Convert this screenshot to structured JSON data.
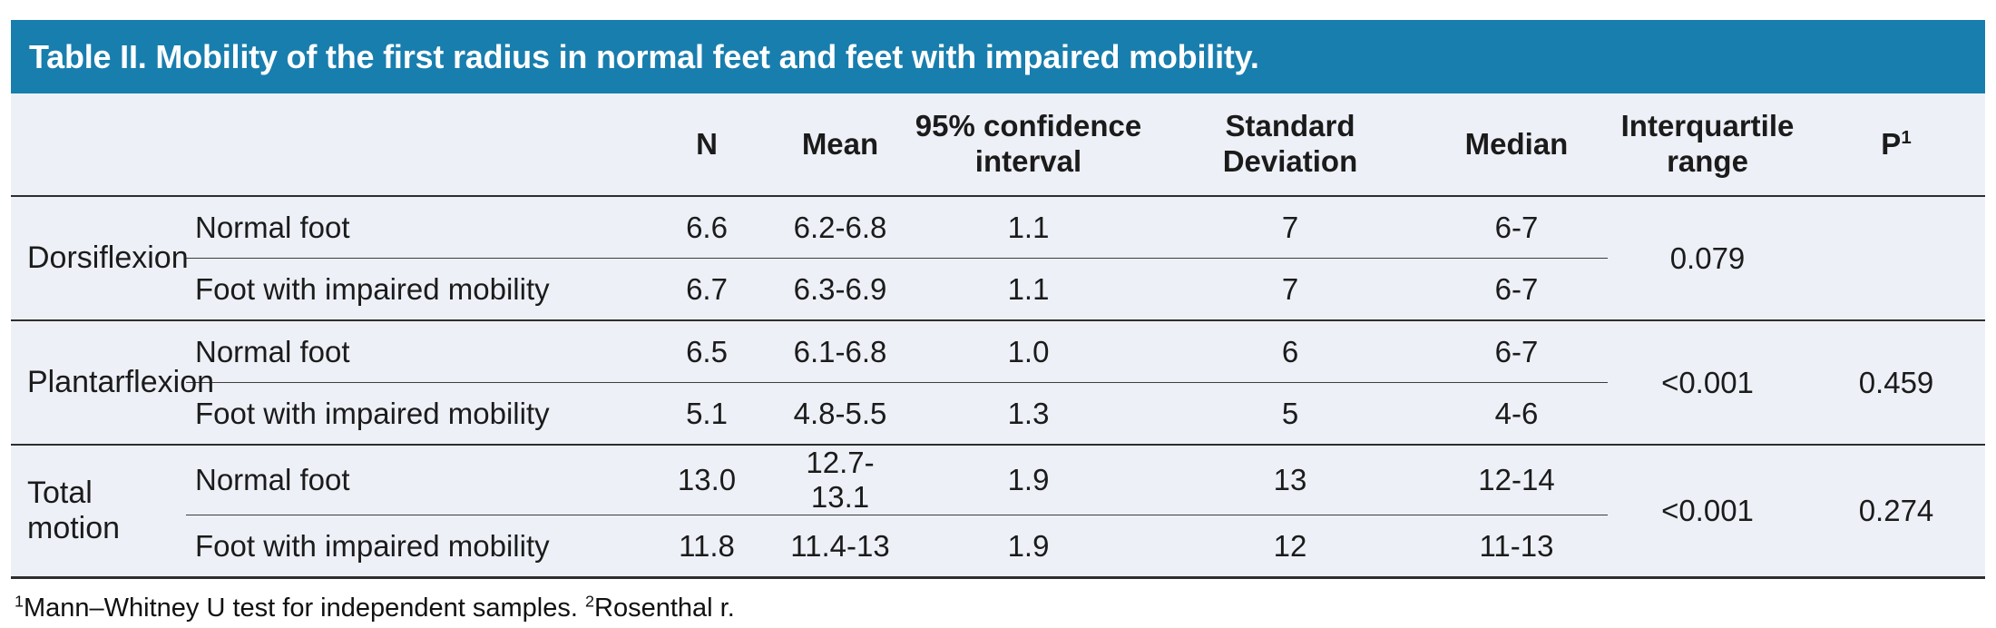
{
  "colors": {
    "accent": "#187eae",
    "table_bg": "#edf0f7"
  },
  "title": "Table II. Mobility of the first radius in normal feet and feet with impaired mobility.",
  "table": {
    "headers": {
      "n": "N",
      "mean": "Mean",
      "ci": "95% confidence interval",
      "sd": "Standard Deviation",
      "median": "Median",
      "iqr": "Interquartile range",
      "p": "P",
      "p_sup": "1"
    },
    "groups": [
      {
        "label": "Dorsiflexion",
        "rows": [
          {
            "label": "Normal foot",
            "n": "6.6",
            "mean": "6.2-6.8",
            "ci": "1.1",
            "sd": "7",
            "median": "6-7"
          },
          {
            "label": "Foot with impaired mobility",
            "n": "6.7",
            "mean": "6.3-6.9",
            "ci": "1.1",
            "sd": "7",
            "median": "6-7"
          }
        ],
        "iqr": "0.079",
        "p": ""
      },
      {
        "label": "Plantarflexion",
        "rows": [
          {
            "label": "Normal foot",
            "n": "6.5",
            "mean": "6.1-6.8",
            "ci": "1.0",
            "sd": "6",
            "median": "6-7"
          },
          {
            "label": "Foot with impaired mobility",
            "n": "5.1",
            "mean": "4.8-5.5",
            "ci": "1.3",
            "sd": "5",
            "median": "4-6"
          }
        ],
        "iqr": "<0.001",
        "p": "0.459"
      },
      {
        "label": "Total motion",
        "rows": [
          {
            "label": "Normal foot",
            "n": "13.0",
            "mean": "12.7-13.1",
            "ci": "1.9",
            "sd": "13",
            "median": "12-14"
          },
          {
            "label": "Foot with impaired mobility",
            "n": "11.8",
            "mean": "11.4-13",
            "ci": "1.9",
            "sd": "12",
            "median": "11-13"
          }
        ],
        "iqr": "<0.001",
        "p": "0.274"
      }
    ]
  },
  "footnote": {
    "sup1": "1",
    "text1": "Mann–Whitney U test for independent samples. ",
    "sup2": "2",
    "text2": "Rosenthal r."
  }
}
